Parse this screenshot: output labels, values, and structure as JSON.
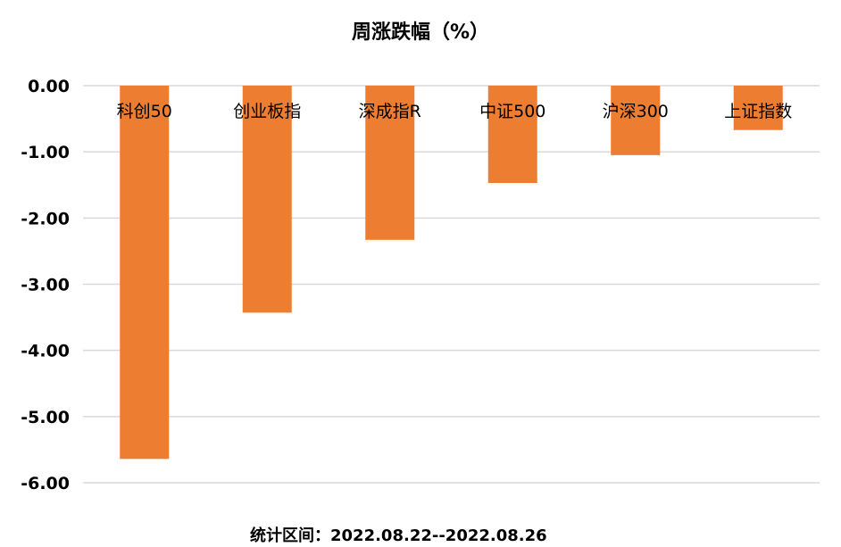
{
  "chart_data": {
    "type": "bar",
    "title": "周涨跌幅（%）",
    "categories": [
      "科创50",
      "创业板指",
      "深成指R",
      "中证500",
      "沪深300",
      "上证指数"
    ],
    "values": [
      -5.64,
      -3.43,
      -2.33,
      -1.47,
      -1.05,
      -0.67
    ],
    "ylim": [
      -6.0,
      0.0
    ],
    "yticks": [
      "0.00",
      "-1.00",
      "-2.00",
      "-3.00",
      "-4.00",
      "-5.00",
      "-6.00"
    ],
    "grid": true,
    "bar_color": "#ED7D31",
    "grid_color": "#D9D9D9"
  },
  "footer": "统计区间：2022.08.22--2022.08.26"
}
